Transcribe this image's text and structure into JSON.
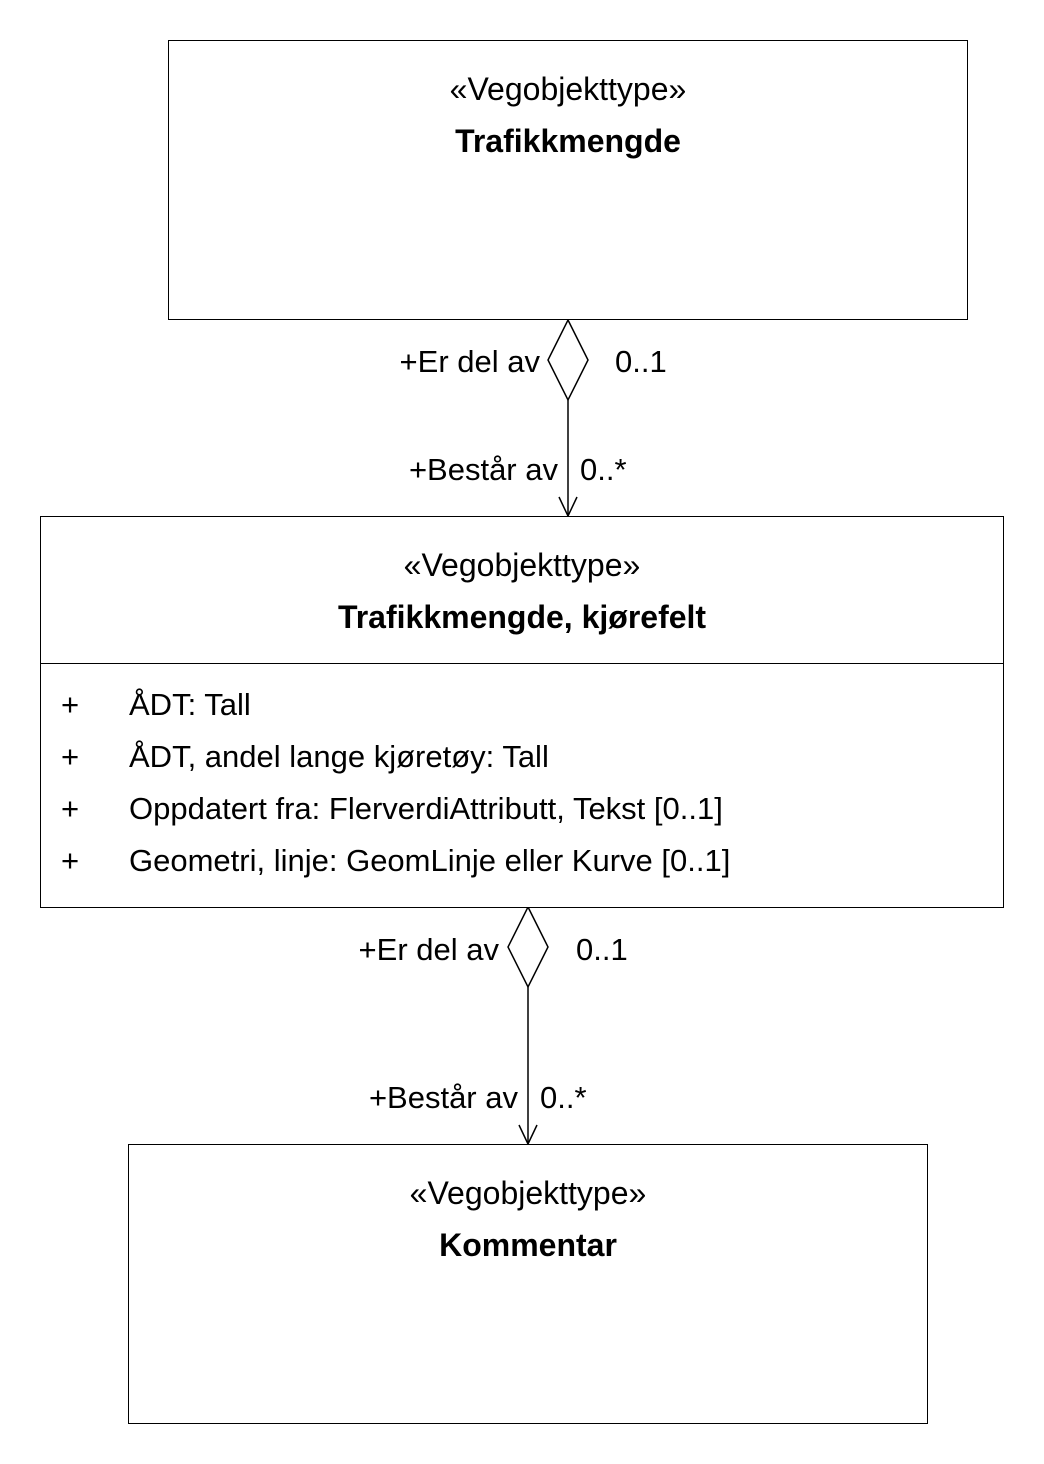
{
  "classes": {
    "top": {
      "stereotype": "«Vegobjekttype»",
      "name": "Trafikkmengde"
    },
    "middle": {
      "stereotype": "«Vegobjekttype»",
      "name": "Trafikkmengde, kjørefelt",
      "attributes": [
        {
          "visibility": "+",
          "text": "ÅDT: Tall"
        },
        {
          "visibility": "+",
          "text": "ÅDT, andel lange kjøretøy: Tall"
        },
        {
          "visibility": "+",
          "text": "Oppdatert fra: FlerverdiAttributt, Tekst [0..1]"
        },
        {
          "visibility": "+",
          "text": "Geometri, linje: GeomLinje eller Kurve [0..1]"
        }
      ]
    },
    "bottom": {
      "stereotype": "«Vegobjekttype»",
      "name": "Kommentar"
    }
  },
  "associations": [
    {
      "whole_role": "+Er del av",
      "whole_multiplicity": "0..1",
      "part_role": "+Består av",
      "part_multiplicity": "0..*"
    },
    {
      "whole_role": "+Er del av",
      "whole_multiplicity": "0..1",
      "part_role": "+Består av",
      "part_multiplicity": "0..*"
    }
  ]
}
